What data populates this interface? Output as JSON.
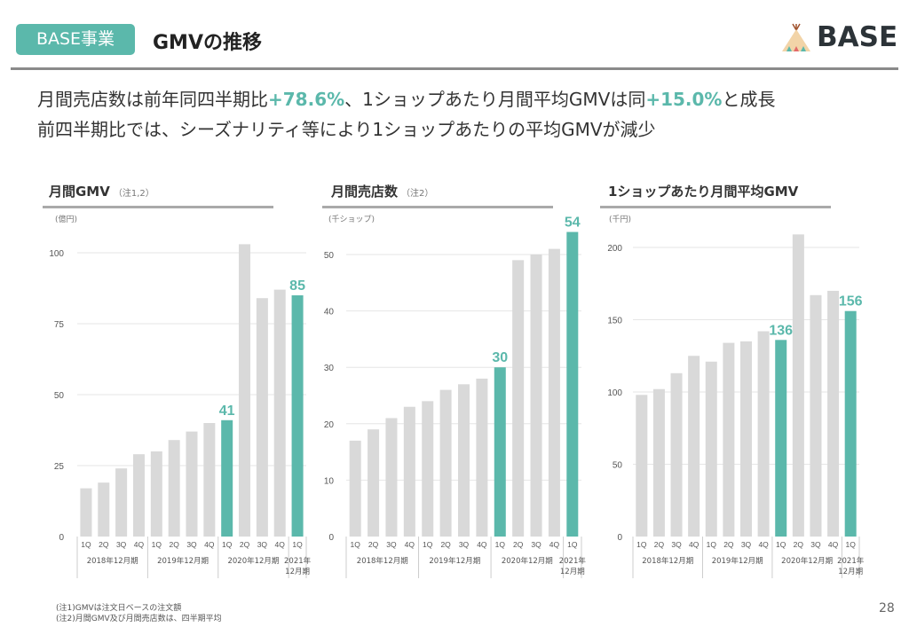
{
  "header": {
    "badge": "BASE事業",
    "title": "GMVの推移",
    "logo_text": "BASE"
  },
  "lead": {
    "line1_a": "月間売店数は前年同四半期比",
    "line1_b": "+78.6%",
    "line1_c": "、1ショップあたり月間平均GMVは同",
    "line1_d": "+15.0%",
    "line1_e": "と成長",
    "line2": "前四半期比では、シーズナリティ等により1ショップあたりの平均GMVが減少"
  },
  "colors": {
    "accent": "#5bb8ab",
    "bar": "#d9d9d9",
    "grid": "#e6e6e6"
  },
  "chart_data": [
    {
      "type": "bar",
      "title": "月間GMV",
      "note": "（注1,2）",
      "ylabel": "(億円)",
      "ylim": [
        0,
        100
      ],
      "yticks": [
        0,
        25,
        50,
        75,
        100
      ],
      "grid": true,
      "categories": [
        "1Q",
        "2Q",
        "3Q",
        "4Q",
        "1Q",
        "2Q",
        "3Q",
        "4Q",
        "1Q",
        "2Q",
        "3Q",
        "4Q",
        "1Q"
      ],
      "groups": [
        {
          "label": "2018年12月期",
          "count": 4
        },
        {
          "label": "2019年12月期",
          "count": 4
        },
        {
          "label": "2020年12月期",
          "count": 4
        },
        {
          "label": "2021年\n12月期",
          "count": 1
        }
      ],
      "values": [
        17,
        19,
        24,
        29,
        30,
        34,
        37,
        40,
        41,
        103,
        84,
        87,
        85
      ],
      "highlight": [
        8,
        12
      ],
      "data_labels": {
        "8": "41",
        "12": "85"
      }
    },
    {
      "type": "bar",
      "title": "月間売店数",
      "note": "（注2）",
      "ylabel": "(千ショップ)",
      "ylim": [
        0,
        50
      ],
      "yticks": [
        0,
        10,
        20,
        30,
        40,
        50
      ],
      "grid": true,
      "categories": [
        "1Q",
        "2Q",
        "3Q",
        "4Q",
        "1Q",
        "2Q",
        "3Q",
        "4Q",
        "1Q",
        "2Q",
        "3Q",
        "4Q",
        "1Q"
      ],
      "groups": [
        {
          "label": "2018年12月期",
          "count": 4
        },
        {
          "label": "2019年12月期",
          "count": 4
        },
        {
          "label": "2020年12月期",
          "count": 4
        },
        {
          "label": "2021年\n12月期",
          "count": 1
        }
      ],
      "values": [
        17,
        19,
        21,
        23,
        24,
        26,
        27,
        28,
        30,
        49,
        50,
        51,
        54
      ],
      "highlight": [
        8,
        12
      ],
      "data_labels": {
        "8": "30",
        "12": "54"
      }
    },
    {
      "type": "bar",
      "title": "1ショップあたり月間平均GMV",
      "note": "",
      "ylabel": "(千円)",
      "ylim": [
        0,
        200
      ],
      "yticks": [
        0,
        50,
        100,
        150,
        200
      ],
      "grid": true,
      "categories": [
        "1Q",
        "2Q",
        "3Q",
        "4Q",
        "1Q",
        "2Q",
        "3Q",
        "4Q",
        "1Q",
        "2Q",
        "3Q",
        "4Q",
        "1Q"
      ],
      "groups": [
        {
          "label": "2018年12月期",
          "count": 4
        },
        {
          "label": "2019年12月期",
          "count": 4
        },
        {
          "label": "2020年12月期",
          "count": 4
        },
        {
          "label": "2021年\n12月期",
          "count": 1
        }
      ],
      "values": [
        98,
        102,
        113,
        125,
        121,
        134,
        135,
        142,
        136,
        209,
        167,
        170,
        156
      ],
      "highlight": [
        8,
        12
      ],
      "data_labels": {
        "8": "136",
        "12": "156"
      }
    }
  ],
  "footer": {
    "note1": "(注1)GMVは注文日ベースの注文額",
    "note2": "(注2)月間GMV及び月間売店数は、四半期平均",
    "page": "28"
  }
}
